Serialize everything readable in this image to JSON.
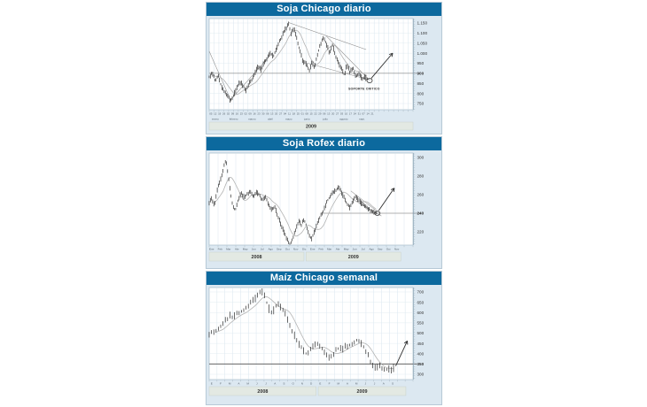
{
  "colors": {
    "titlebar": "#0c699e",
    "panel_bg": "#dce8f1",
    "panel_border": "#b7c9d6",
    "plot_bg": "#ffffff",
    "grid": "#cfdfeb",
    "hgrid": "#dce7ef",
    "frame": "#a9becb",
    "bars": "#1c1c1c",
    "moving_average": "#b3b3b3",
    "trendline": "#8c8c8c",
    "arrow": "#2e2e2e",
    "support": "#666666",
    "axis_text": "#333333",
    "tiny_text": "#55606a",
    "yearbar_bg": "#e3e9e3",
    "yearbar_border": "#c9d2cb",
    "yearbar_text": "#333333"
  },
  "chart_data": [
    {
      "type": "ohlc-line",
      "title": "Soja Chicago diario",
      "ylabel": "",
      "y_ticks": [
        "1.150",
        "1.100",
        "1.050",
        "1.000",
        "950",
        "900",
        "850",
        "800",
        "750"
      ],
      "ylim": [
        750,
        1150
      ],
      "support_line": {
        "price": 900,
        "x0": 0.0,
        "x1": 1.02,
        "bold": false
      },
      "series": {
        "name": "Soja Chicago",
        "anchors": [
          [
            0.0,
            882
          ],
          [
            0.015,
            903
          ],
          [
            0.03,
            862
          ],
          [
            0.045,
            888
          ],
          [
            0.06,
            835
          ],
          [
            0.075,
            805
          ],
          [
            0.09,
            788
          ],
          [
            0.105,
            764
          ],
          [
            0.12,
            792
          ],
          [
            0.135,
            825
          ],
          [
            0.15,
            858
          ],
          [
            0.165,
            842
          ],
          [
            0.18,
            812
          ],
          [
            0.195,
            848
          ],
          [
            0.21,
            872
          ],
          [
            0.225,
            902
          ],
          [
            0.24,
            938
          ],
          [
            0.255,
            918
          ],
          [
            0.27,
            955
          ],
          [
            0.285,
            978
          ],
          [
            0.3,
            1002
          ],
          [
            0.315,
            982
          ],
          [
            0.33,
            1022
          ],
          [
            0.345,
            1058
          ],
          [
            0.36,
            1092
          ],
          [
            0.375,
            1122
          ],
          [
            0.39,
            1148
          ],
          [
            0.4,
            1095
          ],
          [
            0.415,
            1128
          ],
          [
            0.43,
            1072
          ],
          [
            0.445,
            1012
          ],
          [
            0.46,
            958
          ],
          [
            0.475,
            948
          ],
          [
            0.49,
            912
          ],
          [
            0.505,
            958
          ],
          [
            0.515,
            925
          ],
          [
            0.53,
            988
          ],
          [
            0.545,
            1042
          ],
          [
            0.56,
            1078
          ],
          [
            0.575,
            1048
          ],
          [
            0.59,
            1002
          ],
          [
            0.605,
            1042
          ],
          [
            0.62,
            988
          ],
          [
            0.635,
            952
          ],
          [
            0.65,
            918
          ],
          [
            0.665,
            888
          ],
          [
            0.675,
            942
          ],
          [
            0.69,
            908
          ],
          [
            0.705,
            928
          ],
          [
            0.72,
            882
          ],
          [
            0.735,
            902
          ],
          [
            0.75,
            872
          ],
          [
            0.765,
            880
          ],
          [
            0.78,
            864
          ]
        ]
      },
      "trendlines": [
        [
          0.0,
          1010,
          0.105,
          768
        ],
        [
          0.105,
          768,
          0.3,
          990
        ],
        [
          0.39,
          1152,
          0.77,
          1018
        ],
        [
          0.575,
          1085,
          0.785,
          868
        ],
        [
          0.475,
          952,
          0.785,
          868
        ]
      ],
      "circle": [
        0.787,
        864
      ],
      "arrow": [
        0.795,
        875,
        0.9,
        1000
      ],
      "annotation": {
        "text": "SOPORTE CRITICO",
        "x": 0.76,
        "price": 818
      },
      "x_axis": {
        "day_ticks": [
          "05",
          "12",
          "19",
          "26",
          "02",
          "09",
          "16",
          "23",
          "02",
          "09",
          "16",
          "23",
          "30",
          "06",
          "13",
          "20",
          "27",
          "04",
          "11",
          "18",
          "25",
          "01",
          "08",
          "15",
          "22",
          "29",
          "06",
          "13",
          "20",
          "27",
          "03",
          "10",
          "17",
          "24",
          "31",
          "07",
          "14",
          "21"
        ],
        "months": [
          "enero",
          "febrero",
          "marzo",
          "abril",
          "mayo",
          "junio",
          "julio",
          "agosto",
          "sept."
        ],
        "yearbars": [
          {
            "label": "2009",
            "x0": 0.0,
            "x1": 1.0
          }
        ]
      }
    },
    {
      "type": "ohlc-line",
      "title": "Soja Rofex diario",
      "ylabel": "",
      "y_ticks": [
        "300",
        "280",
        "260",
        "240",
        "220"
      ],
      "ylim": [
        220,
        300
      ],
      "support_line": {
        "price": 240,
        "x0": 0.55,
        "x1": 1.04,
        "bold": false
      },
      "series": {
        "name": "Soja Rofex",
        "anchors": [
          [
            0.0,
            250
          ],
          [
            0.012,
            257
          ],
          [
            0.025,
            247
          ],
          [
            0.04,
            266
          ],
          [
            0.055,
            276
          ],
          [
            0.07,
            288
          ],
          [
            0.082,
            298
          ],
          [
            0.092,
            284
          ],
          [
            0.103,
            264
          ],
          [
            0.115,
            248
          ],
          [
            0.128,
            243
          ],
          [
            0.142,
            254
          ],
          [
            0.157,
            262
          ],
          [
            0.172,
            257
          ],
          [
            0.187,
            261
          ],
          [
            0.202,
            263
          ],
          [
            0.217,
            257
          ],
          [
            0.232,
            263
          ],
          [
            0.247,
            259
          ],
          [
            0.262,
            254
          ],
          [
            0.277,
            257
          ],
          [
            0.292,
            249
          ],
          [
            0.307,
            244
          ],
          [
            0.322,
            247
          ],
          [
            0.337,
            237
          ],
          [
            0.352,
            228
          ],
          [
            0.367,
            220
          ],
          [
            0.382,
            212
          ],
          [
            0.397,
            206
          ],
          [
            0.41,
            213
          ],
          [
            0.425,
            223
          ],
          [
            0.44,
            232
          ],
          [
            0.452,
            227
          ],
          [
            0.465,
            234
          ],
          [
            0.478,
            226
          ],
          [
            0.49,
            217
          ],
          [
            0.502,
            212
          ],
          [
            0.517,
            221
          ],
          [
            0.532,
            230
          ],
          [
            0.547,
            238
          ],
          [
            0.562,
            243
          ],
          [
            0.577,
            252
          ],
          [
            0.592,
            258
          ],
          [
            0.607,
            262
          ],
          [
            0.622,
            265
          ],
          [
            0.637,
            268
          ],
          [
            0.65,
            262
          ],
          [
            0.663,
            256
          ],
          [
            0.676,
            250
          ],
          [
            0.69,
            246
          ],
          [
            0.703,
            252
          ],
          [
            0.717,
            258
          ],
          [
            0.73,
            255
          ],
          [
            0.745,
            251
          ],
          [
            0.76,
            249
          ],
          [
            0.775,
            246
          ],
          [
            0.79,
            243
          ],
          [
            0.805,
            241
          ],
          [
            0.82,
            240
          ]
        ]
      },
      "trendlines": [
        [
          0.695,
          264,
          0.83,
          241
        ],
        [
          0.72,
          253,
          0.845,
          237
        ]
      ],
      "circle": [
        0.825,
        240
      ],
      "arrow": [
        0.832,
        243,
        0.908,
        267
      ],
      "annotation": null,
      "x_axis": {
        "day_ticks": [],
        "months": [
          "Ene",
          "Feb",
          "Mar",
          "Abr",
          "May",
          "Jun",
          "Jul",
          "Ago",
          "Sep",
          "Oct",
          "Nov",
          "Dic",
          "Ene",
          "Feb",
          "Mar",
          "Abr",
          "May",
          "Jun",
          "Jul",
          "Ago",
          "Sep",
          "Oct",
          "Nov"
        ],
        "yearbars": [
          {
            "label": "2008",
            "x0": 0.0,
            "x1": 0.465
          },
          {
            "label": "2009",
            "x0": 0.475,
            "x1": 0.94
          }
        ]
      }
    },
    {
      "type": "ohlc-line",
      "title": "Maíz Chicago semanal",
      "ylabel": "",
      "y_ticks": [
        "700",
        "650",
        "600",
        "550",
        "500",
        "450",
        "400",
        "350",
        "300"
      ],
      "ylim": [
        300,
        700
      ],
      "support_line": {
        "price": 350,
        "x0": 0.0,
        "x1": 1.02,
        "bold": true
      },
      "series": {
        "name": "Maíz Chicago",
        "anchors": [
          [
            0.0,
            497
          ],
          [
            0.015,
            505
          ],
          [
            0.03,
            512
          ],
          [
            0.045,
            520
          ],
          [
            0.06,
            540
          ],
          [
            0.075,
            555
          ],
          [
            0.09,
            570
          ],
          [
            0.1,
            585
          ],
          [
            0.115,
            575
          ],
          [
            0.13,
            590
          ],
          [
            0.145,
            600
          ],
          [
            0.16,
            608
          ],
          [
            0.175,
            615
          ],
          [
            0.19,
            628
          ],
          [
            0.2,
            640
          ],
          [
            0.215,
            655
          ],
          [
            0.23,
            672
          ],
          [
            0.245,
            700
          ],
          [
            0.255,
            708
          ],
          [
            0.265,
            690
          ],
          [
            0.275,
            672
          ],
          [
            0.285,
            640
          ],
          [
            0.295,
            615
          ],
          [
            0.31,
            600
          ],
          [
            0.325,
            628
          ],
          [
            0.34,
            638
          ],
          [
            0.355,
            618
          ],
          [
            0.37,
            600
          ],
          [
            0.385,
            565
          ],
          [
            0.4,
            530
          ],
          [
            0.415,
            495
          ],
          [
            0.43,
            465
          ],
          [
            0.445,
            440
          ],
          [
            0.46,
            420
          ],
          [
            0.475,
            400
          ],
          [
            0.49,
            415
          ],
          [
            0.505,
            435
          ],
          [
            0.52,
            450
          ],
          [
            0.535,
            440
          ],
          [
            0.55,
            428
          ],
          [
            0.565,
            405
          ],
          [
            0.58,
            390
          ],
          [
            0.595,
            382
          ],
          [
            0.61,
            400
          ],
          [
            0.625,
            420
          ],
          [
            0.64,
            428
          ],
          [
            0.655,
            425
          ],
          [
            0.67,
            432
          ],
          [
            0.685,
            440
          ],
          [
            0.7,
            450
          ],
          [
            0.715,
            462
          ],
          [
            0.73,
            468
          ],
          [
            0.745,
            452
          ],
          [
            0.76,
            430
          ],
          [
            0.775,
            400
          ],
          [
            0.79,
            368
          ],
          [
            0.805,
            342
          ],
          [
            0.82,
            330
          ],
          [
            0.835,
            338
          ],
          [
            0.85,
            326
          ],
          [
            0.865,
            318
          ],
          [
            0.88,
            330
          ],
          [
            0.895,
            322
          ],
          [
            0.91,
            335
          ]
        ]
      },
      "trendlines": [],
      "circle": null,
      "arrow": [
        0.915,
        340,
        0.972,
        462
      ],
      "annotation": null,
      "x_axis": {
        "day_ticks": [],
        "months": [],
        "weeks": [
          "E",
          "F",
          "M",
          "A",
          "M",
          "J",
          "J",
          "A",
          "S",
          "O",
          "N",
          "D",
          "E",
          "F",
          "M",
          "A",
          "M",
          "J",
          "J",
          "A",
          "S"
        ],
        "yearbars": [
          {
            "label": "2008",
            "x0": 0.0,
            "x1": 0.525
          },
          {
            "label": "2009",
            "x0": 0.535,
            "x1": 0.965
          }
        ]
      }
    }
  ]
}
